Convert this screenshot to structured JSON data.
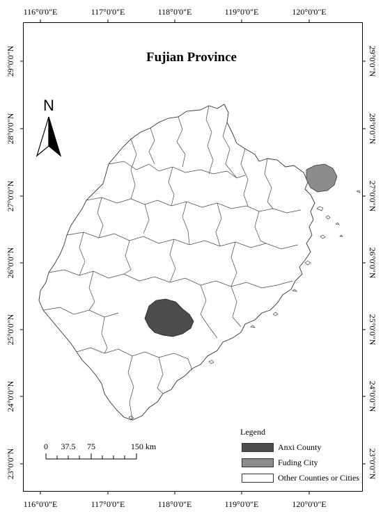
{
  "title": "Fujian Province",
  "lon_labels": [
    "116°0'0\"E",
    "117°0'0\"E",
    "118°0'0\"E",
    "119°0'0\"E",
    "120°0'0\"E"
  ],
  "lat_labels": [
    "29°0'0\"N",
    "28°0'0\"N",
    "27°0'0\"N",
    "26°0'0\"N",
    "25°0'0\"N",
    "24°0'0\"N",
    "23°0'0\"N"
  ],
  "north_arrow_label": "N",
  "scale_bar": {
    "labels": [
      "0",
      "37.5",
      "75",
      "150 km"
    ],
    "distances_km": [
      0,
      37.5,
      75,
      150
    ]
  },
  "legend": {
    "title": "Legend",
    "items": [
      {
        "label": "Anxi County",
        "color": "#4d4d4d"
      },
      {
        "label": "Fuding City",
        "color": "#8c8c8c"
      },
      {
        "label": "Other Counties or Cities",
        "color": "#ffffff"
      }
    ]
  }
}
